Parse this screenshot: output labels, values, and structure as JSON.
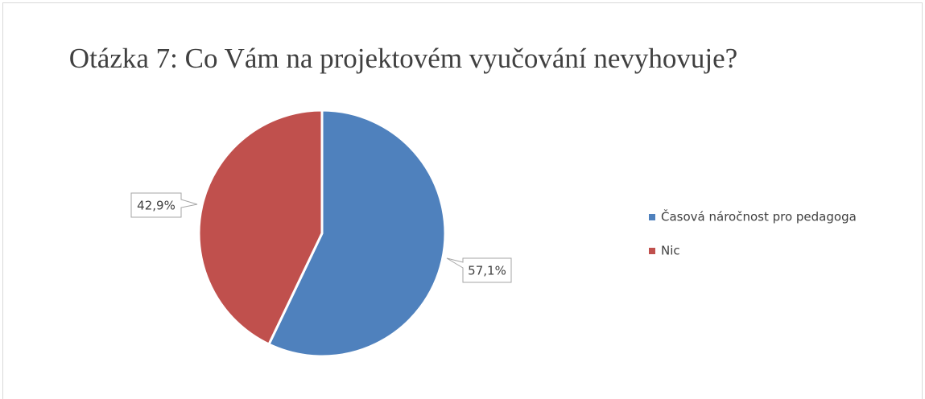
{
  "chart_data": {
    "type": "pie",
    "title": "Otázka 7: Co Vám na projektovém vyučování nevyhovuje?",
    "categories": [
      "Časová náročnost pro pedagoga",
      "Nic"
    ],
    "values": [
      57.1,
      42.9
    ],
    "value_labels": [
      "57,1%",
      "42,9%"
    ],
    "colors": [
      "#4f81bd",
      "#c0504d"
    ],
    "legend": "right"
  }
}
